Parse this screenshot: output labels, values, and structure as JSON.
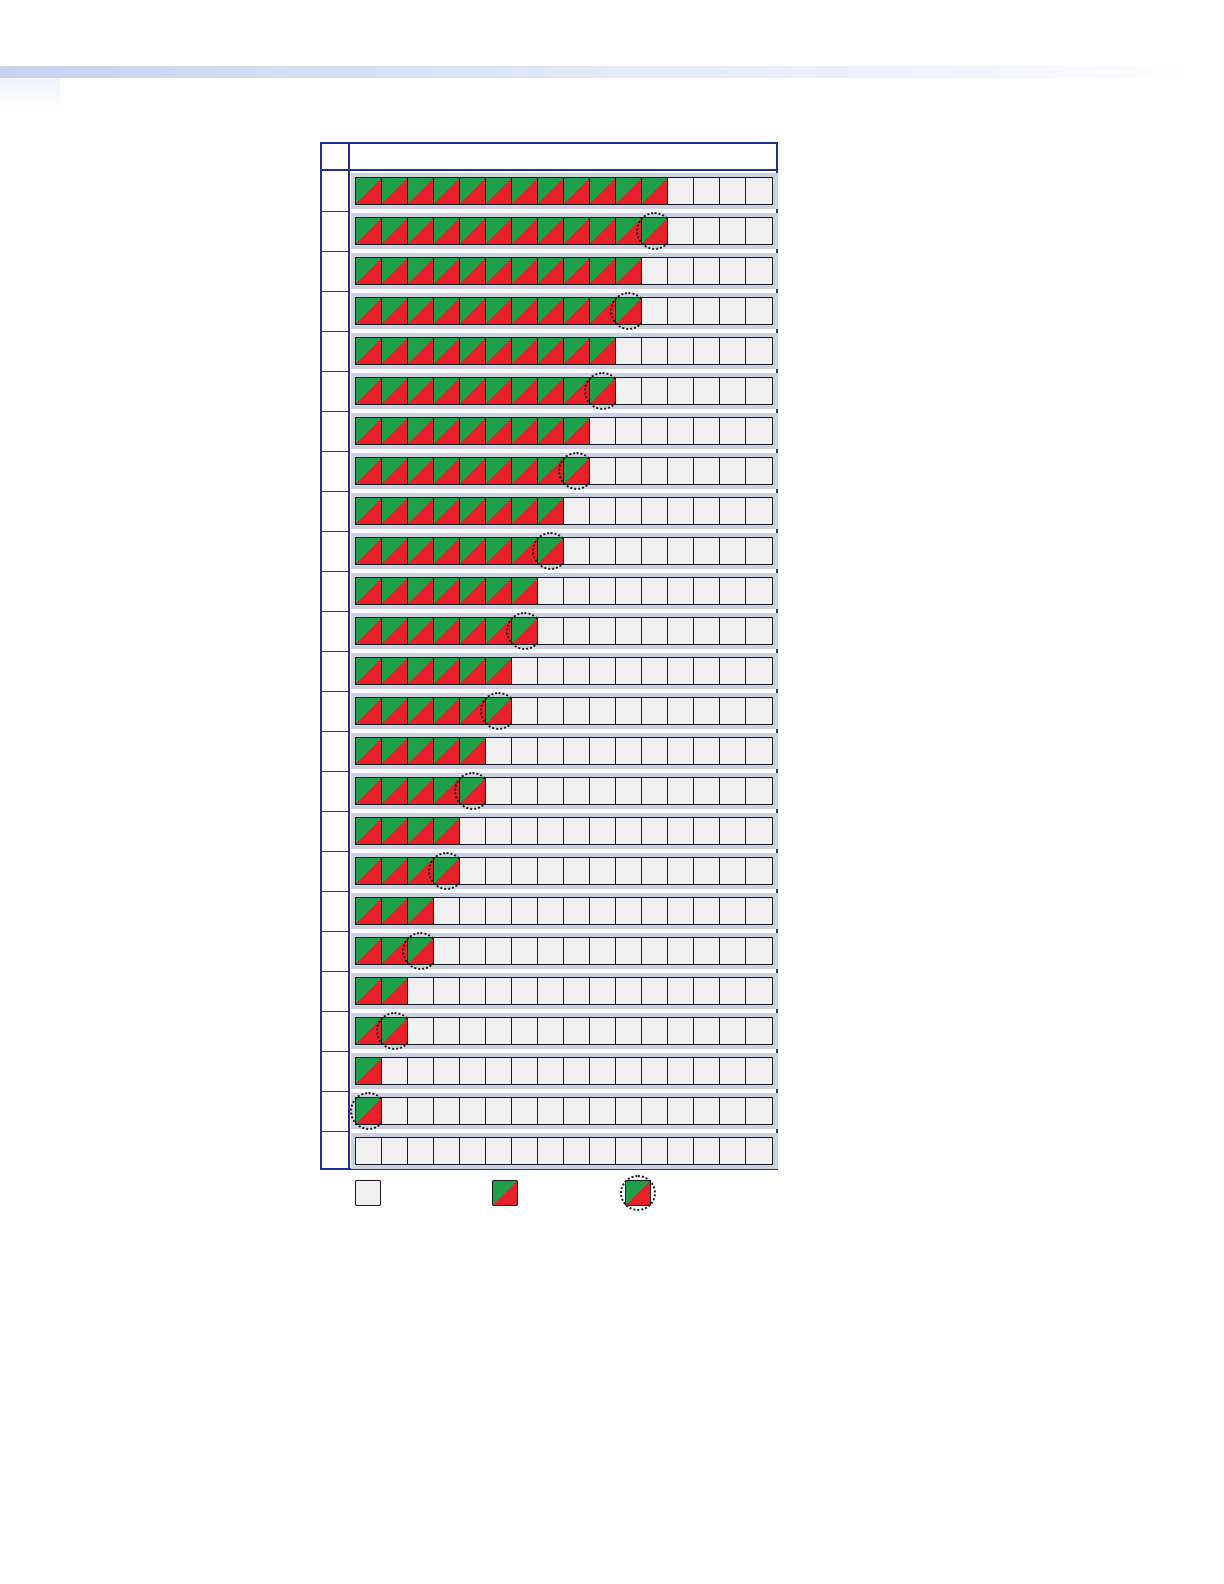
{
  "header": {
    "label": "",
    "title": ""
  },
  "legend": [
    {
      "state": "off",
      "icon": "unlit-segment-icon",
      "label": ""
    },
    {
      "state": "on",
      "icon": "lit-segment-icon",
      "label": ""
    },
    {
      "state": "blink",
      "icon": "blinking-segment-icon",
      "label": ""
    }
  ],
  "colors": {
    "segment_green": "#1ea04a",
    "segment_red": "#e8202a",
    "segment_off": "#f0f0f0",
    "frame_blue": "#23328c",
    "meter_border": "#cbd3e2"
  },
  "meter": {
    "segments_per_row": 16
  },
  "rows": [
    {
      "label": "",
      "lit": 12,
      "blink": false
    },
    {
      "label": "",
      "lit": 11,
      "blink": true
    },
    {
      "label": "",
      "lit": 11,
      "blink": false
    },
    {
      "label": "",
      "lit": 10,
      "blink": true
    },
    {
      "label": "",
      "lit": 10,
      "blink": false
    },
    {
      "label": "",
      "lit": 9,
      "blink": true
    },
    {
      "label": "",
      "lit": 9,
      "blink": false
    },
    {
      "label": "",
      "lit": 8,
      "blink": true
    },
    {
      "label": "",
      "lit": 8,
      "blink": false
    },
    {
      "label": "",
      "lit": 7,
      "blink": true
    },
    {
      "label": "",
      "lit": 7,
      "blink": false
    },
    {
      "label": "",
      "lit": 6,
      "blink": true
    },
    {
      "label": "",
      "lit": 6,
      "blink": false
    },
    {
      "label": "",
      "lit": 5,
      "blink": true
    },
    {
      "label": "",
      "lit": 5,
      "blink": false
    },
    {
      "label": "",
      "lit": 4,
      "blink": true
    },
    {
      "label": "",
      "lit": 4,
      "blink": false
    },
    {
      "label": "",
      "lit": 3,
      "blink": true
    },
    {
      "label": "",
      "lit": 3,
      "blink": false
    },
    {
      "label": "",
      "lit": 2,
      "blink": true
    },
    {
      "label": "",
      "lit": 2,
      "blink": false
    },
    {
      "label": "",
      "lit": 1,
      "blink": true
    },
    {
      "label": "",
      "lit": 1,
      "blink": false
    },
    {
      "label": "",
      "lit": 0,
      "blink": true
    },
    {
      "label": "",
      "lit": 0,
      "blink": false
    }
  ]
}
